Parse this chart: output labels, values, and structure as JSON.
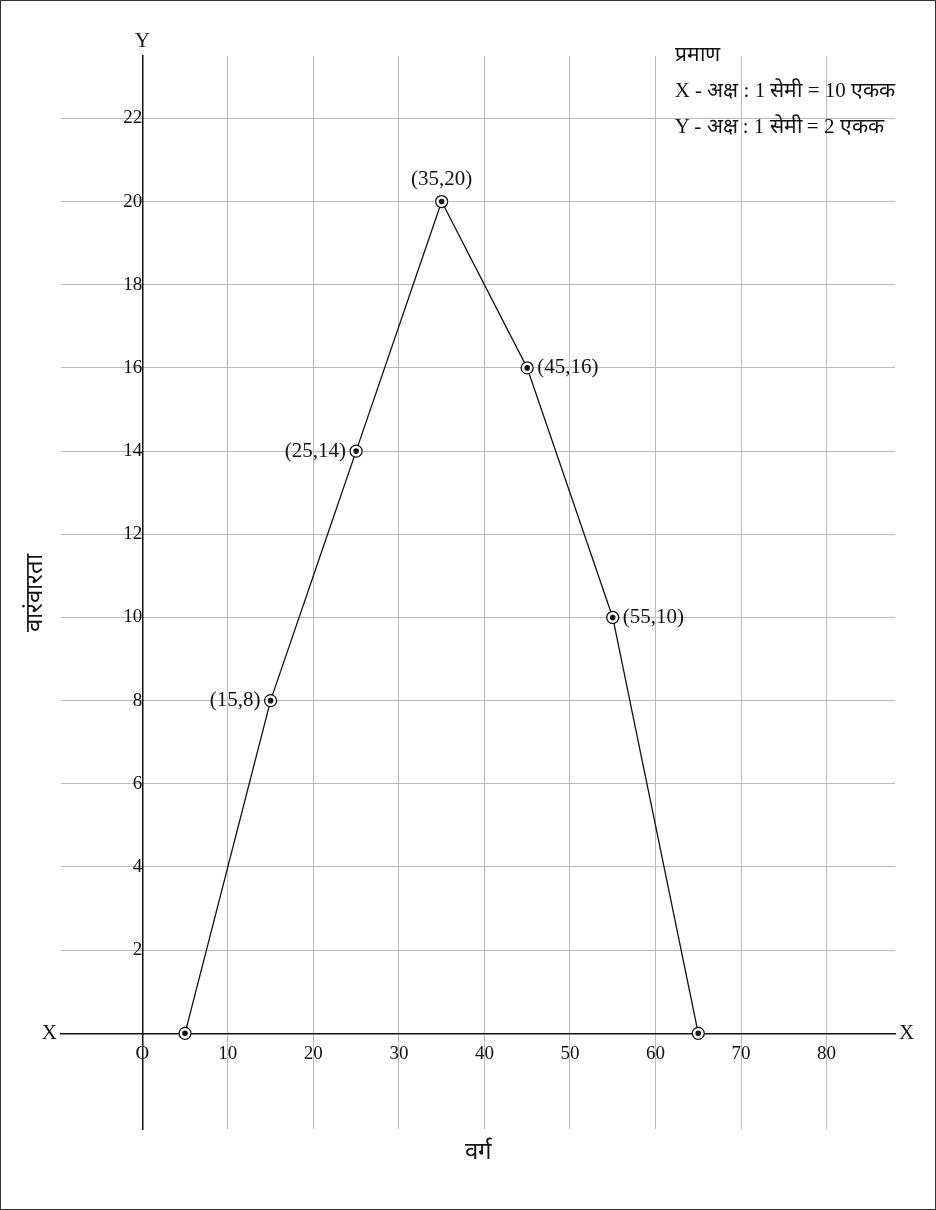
{
  "chart_data": {
    "type": "line",
    "xlabel": "वर्ग",
    "ylabel": "वारंवारता",
    "x": [
      5,
      15,
      25,
      35,
      45,
      55,
      65
    ],
    "series": [
      {
        "color": "#111111",
        "values": [
          0,
          8,
          14,
          20,
          16,
          10,
          0
        ]
      }
    ],
    "xlim": [
      -9.5,
      88
    ],
    "ylim": [
      -2.3,
      23.5
    ],
    "xticks": [
      {
        "value": 0,
        "label": "O"
      },
      10,
      20,
      30,
      40,
      50,
      60,
      70,
      80
    ],
    "yticks": [
      2,
      4,
      6,
      8,
      10,
      12,
      14,
      16,
      18,
      20,
      22
    ],
    "grid": true,
    "marker": "circle",
    "legend": false,
    "annotations": [
      "प्रमाण",
      "X - अक्ष : 1 सेमी = 10 एकक",
      "Y - अक्ष : 1 सेमी = 2 एकक",
      "X",
      "X",
      "Y",
      {
        "text": "(15,8)",
        "x": 15,
        "y": 8
      },
      {
        "text": "(25,14)",
        "x": 25,
        "y": 14
      },
      {
        "text": "(35,20)",
        "x": 35,
        "y": 20
      },
      {
        "text": "(45,16)",
        "x": 45,
        "y": 16
      },
      {
        "text": "(55,10)",
        "x": 55,
        "y": 10
      }
    ]
  }
}
